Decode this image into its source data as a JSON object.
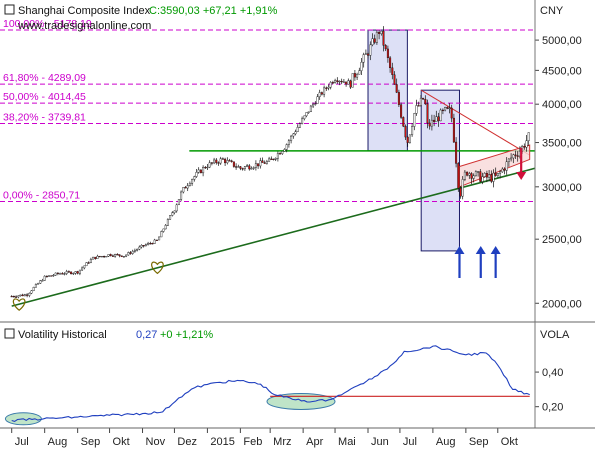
{
  "colors": {
    "fib": "#cc00cc",
    "trend": "#009900",
    "trend_dark": "#1c6b1c",
    "box_fill": "#dde0f6",
    "box_stroke": "#1a1a66",
    "channel": "#d03030",
    "channel_fill": "#f8d8d8",
    "arrow_up": "#1f3fbf",
    "arrow_down": "#d0103a",
    "vol_line": "#1f3fbf",
    "vol_ref": "#cc2222",
    "ellipse_fill": "#bfe4c8",
    "ellipse_stroke": "#3a7aaa",
    "up_candle": "#ffffff",
    "down_candle": "#cc1111"
  },
  "price_panel": {
    "title": "Shanghai Composite Index",
    "quote": "C:3590,03 +67,21 +1,91%",
    "watermark": "www.tradesignalonline.com",
    "currency": "CNY"
  },
  "volatility_panel": {
    "title": "Volatility Historical",
    "value": "0,27",
    "change": "+0 +1,21%",
    "unit": "VOLA"
  },
  "annotations": {
    "fib_levels": [
      {
        "label": "100,00% - 5178,19",
        "value": 5178.19
      },
      {
        "label": "61,80% - 4289,09",
        "value": 4289.09
      },
      {
        "label": "50,00% - 4014,45",
        "value": 4014.45
      },
      {
        "label": "38,20% - 3739,81",
        "value": 3739.81
      },
      {
        "label": "0,00% - 2850,71",
        "value": 2850.71
      }
    ],
    "support_level": 3400,
    "trendline": {
      "from": [
        "2014-07-01",
        1980
      ],
      "to": [
        "2015-10-31",
        3200
      ]
    },
    "highlight_boxes": [
      {
        "from": "2015-06-01",
        "to": "2015-07-08",
        "low": 3400,
        "high": 5178
      },
      {
        "from": "2015-07-21",
        "to": "2015-08-26",
        "low": 2400,
        "high": 4200
      }
    ],
    "descending_line": {
      "from": [
        "2015-07-21",
        4200
      ],
      "to": [
        "2015-10-31",
        3350
      ]
    },
    "channel": {
      "upper": {
        "from": [
          "2015-08-26",
          3220
        ],
        "to": [
          "2015-10-31",
          3470
        ]
      },
      "lower": {
        "from": [
          "2015-08-26",
          3000
        ],
        "to": [
          "2015-10-31",
          3300
        ]
      }
    },
    "up_arrows": [
      "2015-08-26",
      "2015-09-15",
      "2015-09-29"
    ],
    "down_arrows": [
      "2015-10-23"
    ],
    "vol_reference": {
      "from": "2015-03-01",
      "to": "2015-10-31",
      "value": 0.26
    }
  },
  "chart_data": [
    {
      "type": "candlestick",
      "title": "Shanghai Composite Index",
      "ylabel": "CNY",
      "yscale": "log",
      "ylim": [
        1900,
        5400
      ],
      "xlim": [
        "2014-06-20",
        "2015-11-05"
      ],
      "grid": false,
      "yticks": [
        2000,
        2500,
        3000,
        3500,
        4000,
        4500,
        5000
      ],
      "ytick_labels": [
        "2000,00",
        "2500,00",
        "3000,00",
        "3500,00",
        "4000,00",
        "4500,00",
        "5000,00"
      ],
      "points": [
        [
          "2014-07-01",
          2050
        ],
        [
          "2014-07-15",
          2060
        ],
        [
          "2014-08-01",
          2190
        ],
        [
          "2014-08-15",
          2220
        ],
        [
          "2014-09-01",
          2230
        ],
        [
          "2014-09-15",
          2340
        ],
        [
          "2014-10-01",
          2370
        ],
        [
          "2014-10-15",
          2360
        ],
        [
          "2014-11-01",
          2440
        ],
        [
          "2014-11-15",
          2490
        ],
        [
          "2014-12-01",
          2780
        ],
        [
          "2014-12-08",
          2950
        ],
        [
          "2014-12-15",
          3060
        ],
        [
          "2014-12-31",
          3230
        ],
        [
          "2015-01-15",
          3300
        ],
        [
          "2015-02-01",
          3200
        ],
        [
          "2015-02-15",
          3240
        ],
        [
          "2015-03-01",
          3280
        ],
        [
          "2015-03-15",
          3450
        ],
        [
          "2015-04-01",
          3800
        ],
        [
          "2015-04-15",
          4100
        ],
        [
          "2015-05-01",
          4380
        ],
        [
          "2015-05-15",
          4300
        ],
        [
          "2015-06-01",
          4800
        ],
        [
          "2015-06-12",
          5178
        ],
        [
          "2015-06-26",
          4250
        ],
        [
          "2015-07-08",
          3500
        ],
        [
          "2015-07-15",
          3900
        ],
        [
          "2015-07-24",
          4100
        ],
        [
          "2015-07-27",
          3700
        ],
        [
          "2015-08-12",
          3900
        ],
        [
          "2015-08-18",
          3900
        ],
        [
          "2015-08-26",
          2900
        ],
        [
          "2015-09-01",
          3170
        ],
        [
          "2015-09-15",
          3100
        ],
        [
          "2015-09-30",
          3100
        ],
        [
          "2015-10-15",
          3340
        ],
        [
          "2015-10-23",
          3420
        ],
        [
          "2015-10-31",
          3590
        ]
      ]
    },
    {
      "type": "line",
      "title": "Volatility Historical",
      "ylabel": "VOLA",
      "ylim": [
        0.1,
        0.62
      ],
      "yticks": [
        0.2,
        0.4
      ],
      "ytick_labels": [
        "0,20",
        "0,40"
      ],
      "points": [
        [
          "2014-07-01",
          0.12
        ],
        [
          "2014-07-31",
          0.13
        ],
        [
          "2014-09-01",
          0.14
        ],
        [
          "2014-10-01",
          0.15
        ],
        [
          "2014-11-01",
          0.16
        ],
        [
          "2014-11-20",
          0.17
        ],
        [
          "2014-12-05",
          0.25
        ],
        [
          "2014-12-20",
          0.31
        ],
        [
          "2015-01-10",
          0.34
        ],
        [
          "2015-02-01",
          0.35
        ],
        [
          "2015-02-20",
          0.33
        ],
        [
          "2015-03-05",
          0.27
        ],
        [
          "2015-03-25",
          0.24
        ],
        [
          "2015-04-10",
          0.23
        ],
        [
          "2015-04-25",
          0.24
        ],
        [
          "2015-05-10",
          0.28
        ],
        [
          "2015-05-25",
          0.33
        ],
        [
          "2015-06-10",
          0.38
        ],
        [
          "2015-06-25",
          0.45
        ],
        [
          "2015-07-05",
          0.52
        ],
        [
          "2015-07-20",
          0.53
        ],
        [
          "2015-08-01",
          0.55
        ],
        [
          "2015-08-20",
          0.52
        ],
        [
          "2015-09-01",
          0.5
        ],
        [
          "2015-09-20",
          0.51
        ],
        [
          "2015-10-01",
          0.44
        ],
        [
          "2015-10-15",
          0.3
        ],
        [
          "2015-10-31",
          0.27
        ]
      ]
    }
  ],
  "x_axis": {
    "ticks": [
      {
        "date": "2014-07-01",
        "label": "Jul"
      },
      {
        "date": "2014-08-01",
        "label": "Aug"
      },
      {
        "date": "2014-09-01",
        "label": "Sep"
      },
      {
        "date": "2014-10-01",
        "label": "Okt"
      },
      {
        "date": "2014-11-01",
        "label": "Nov"
      },
      {
        "date": "2014-12-01",
        "label": "Dez"
      },
      {
        "date": "2015-01-01",
        "label": "2015"
      },
      {
        "date": "2015-02-01",
        "label": "Feb"
      },
      {
        "date": "2015-03-01",
        "label": "Mrz"
      },
      {
        "date": "2015-04-01",
        "label": "Apr"
      },
      {
        "date": "2015-05-01",
        "label": "Mai"
      },
      {
        "date": "2015-06-01",
        "label": "Jun"
      },
      {
        "date": "2015-07-01",
        "label": "Jul"
      },
      {
        "date": "2015-08-01",
        "label": "Aug"
      },
      {
        "date": "2015-09-01",
        "label": "Sep"
      },
      {
        "date": "2015-10-01",
        "label": "Okt"
      }
    ]
  }
}
